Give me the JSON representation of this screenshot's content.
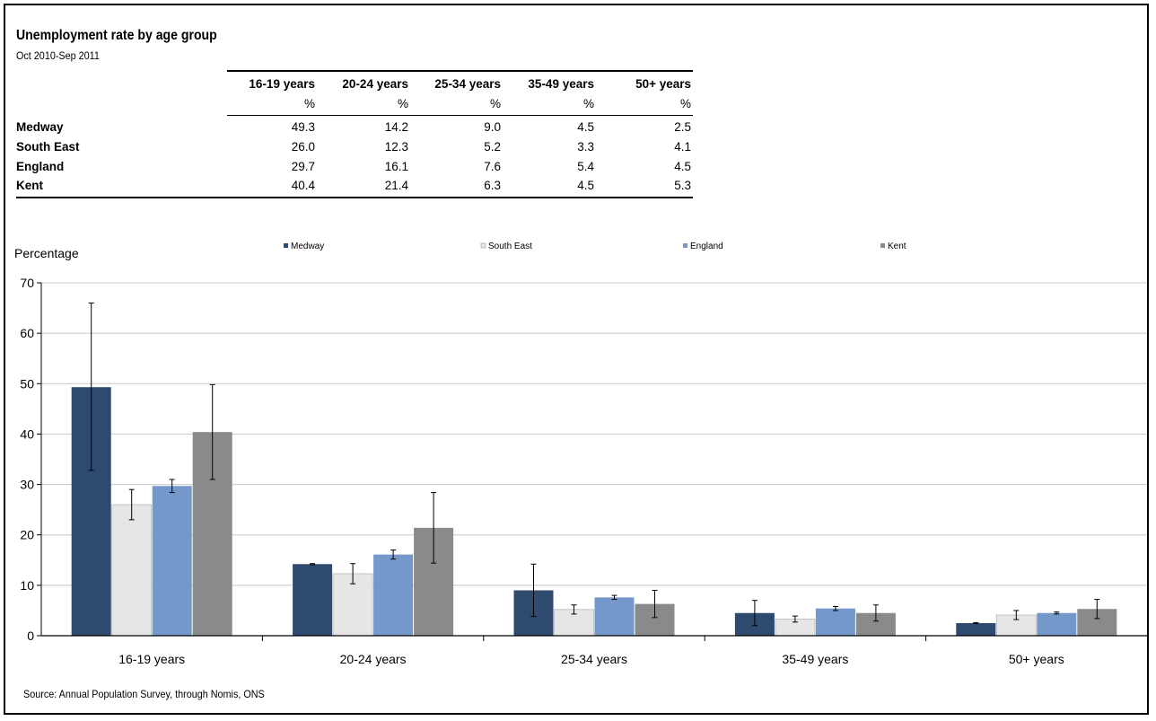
{
  "title": "Unemployment rate by age group",
  "period": "Oct 2010-Sep 2011",
  "table": {
    "columns": [
      "16-19 years",
      "20-24 years",
      "25-34 years",
      "35-49 years",
      "50+ years"
    ],
    "unit": "%",
    "rows": [
      {
        "label": "Medway",
        "values": [
          "49.3",
          "14.2",
          "9.0",
          "4.5",
          "2.5"
        ]
      },
      {
        "label": "South East",
        "values": [
          "26.0",
          "12.3",
          "5.2",
          "3.3",
          "4.1"
        ]
      },
      {
        "label": "England",
        "values": [
          "29.7",
          "16.1",
          "7.6",
          "5.4",
          "4.5"
        ]
      },
      {
        "label": "Kent",
        "values": [
          "40.4",
          "21.4",
          "6.3",
          "4.5",
          "5.3"
        ]
      }
    ]
  },
  "source": "Source:  Annual Population Survey, through Nomis, ONS",
  "chart_data": {
    "type": "bar",
    "ylabel": "Percentage",
    "ylim": [
      0,
      70
    ],
    "yticks": [
      0,
      10,
      20,
      30,
      40,
      50,
      60,
      70
    ],
    "grid": true,
    "legend_placement": "top",
    "categories": [
      "16-19 years",
      "20-24 years",
      "25-34 years",
      "35-49 years",
      "50+ years"
    ],
    "series": [
      {
        "name": "Medway",
        "color": "#2e4a6e",
        "values": [
          49.3,
          14.2,
          9.0,
          4.5,
          2.5
        ],
        "error_low": [
          32.8,
          14.1,
          3.8,
          2.0,
          2.4
        ],
        "error_high": [
          66.0,
          14.3,
          14.2,
          7.0,
          2.6
        ]
      },
      {
        "name": "South East",
        "color": "#e6e6e6",
        "values": [
          26.0,
          12.3,
          5.2,
          3.3,
          4.1
        ],
        "error_low": [
          23.0,
          10.3,
          4.3,
          2.7,
          3.2
        ],
        "error_high": [
          29.0,
          14.3,
          6.1,
          3.9,
          5.0
        ]
      },
      {
        "name": "England",
        "color": "#7398c9",
        "values": [
          29.7,
          16.1,
          7.6,
          5.4,
          4.5
        ],
        "error_low": [
          28.4,
          15.2,
          7.2,
          5.0,
          4.3
        ],
        "error_high": [
          31.0,
          17.0,
          8.0,
          5.8,
          4.7
        ]
      },
      {
        "name": "Kent",
        "color": "#8a8a8a",
        "values": [
          40.4,
          21.4,
          6.3,
          4.5,
          5.3
        ],
        "error_low": [
          31.0,
          14.4,
          3.6,
          2.9,
          3.4
        ],
        "error_high": [
          49.8,
          28.4,
          9.0,
          6.1,
          7.2
        ]
      }
    ]
  }
}
